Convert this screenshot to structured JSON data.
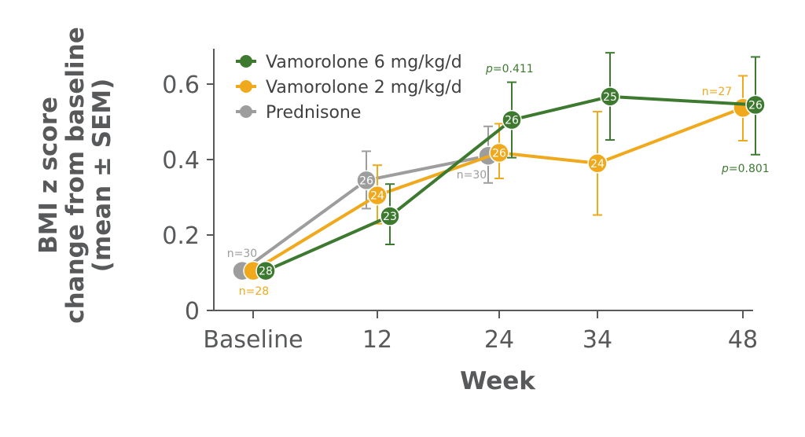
{
  "chart_data": {
    "type": "line",
    "xlabel": "Week",
    "ylabel": [
      "BMI z score",
      "change from baseline",
      "(mean ± SEM)"
    ],
    "categories": [
      "Baseline",
      "12",
      "24",
      "34",
      "48"
    ],
    "ylim": [
      0,
      0.7
    ],
    "yticks": [
      "0",
      "0.2",
      "0.4",
      "0.6"
    ],
    "series": [
      {
        "name": "Vamorolone 6 mg/kg/d",
        "color": "#3d7a30",
        "points": [
          {
            "x": "Baseline",
            "y": 0.105,
            "err_low": null,
            "err_high": null,
            "label": "28"
          },
          {
            "x": "12",
            "y": 0.25,
            "err_low": 0.175,
            "err_high": 0.335,
            "label": "23"
          },
          {
            "x": "24",
            "y": 0.505,
            "err_low": 0.405,
            "err_high": 0.605,
            "label": "26"
          },
          {
            "x": "34",
            "y": 0.567,
            "err_low": 0.452,
            "err_high": 0.683,
            "label": "25"
          },
          {
            "x": "48",
            "y": 0.545,
            "err_low": 0.413,
            "err_high": 0.672,
            "label": "26"
          }
        ]
      },
      {
        "name": "Vamorolone 2 mg/kg/d",
        "color": "#f0a91d",
        "points": [
          {
            "x": "Baseline",
            "y": 0.105,
            "err_low": null,
            "err_high": null,
            "label": ""
          },
          {
            "x": "12",
            "y": 0.305,
            "err_low": 0.23,
            "err_high": 0.385,
            "label": "24"
          },
          {
            "x": "24",
            "y": 0.418,
            "err_low": 0.35,
            "err_high": 0.495,
            "label": "26"
          },
          {
            "x": "34",
            "y": 0.39,
            "err_low": 0.253,
            "err_high": 0.527,
            "label": "24"
          },
          {
            "x": "48",
            "y": 0.537,
            "err_low": 0.45,
            "err_high": 0.622,
            "label": ""
          }
        ]
      },
      {
        "name": "Prednisone",
        "color": "#9d9d9d",
        "points": [
          {
            "x": "Baseline",
            "y": 0.105,
            "err_low": null,
            "err_high": null,
            "label": ""
          },
          {
            "x": "12",
            "y": 0.345,
            "err_low": 0.27,
            "err_high": 0.422,
            "label": "26"
          },
          {
            "x": "24",
            "y": 0.41,
            "err_low": 0.338,
            "err_high": 0.488,
            "label": ""
          }
        ]
      }
    ],
    "annotations": [
      {
        "text": "n=30",
        "color": "#9d9d9d"
      },
      {
        "text": "n=28",
        "color": "#f0a91d"
      },
      {
        "text": "n=30",
        "color": "#9d9d9d"
      },
      {
        "text": "n=27",
        "color": "#f0a91d"
      }
    ],
    "pvalues": [
      {
        "label": "p",
        "value": "=0.411",
        "color": "#3d7a30"
      },
      {
        "label": "p",
        "value": "=0.801",
        "color": "#3d7a30"
      }
    ],
    "legend_position": "top-left",
    "grid": false
  }
}
